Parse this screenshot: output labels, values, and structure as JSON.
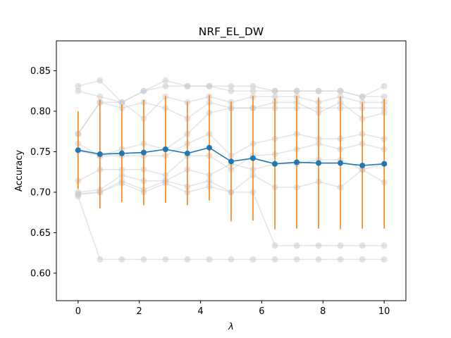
{
  "chart_data": {
    "type": "line",
    "title": "NRF_EL_DW",
    "xlabel": "λ",
    "ylabel": "Accuracy",
    "xlim": [
      -0.71,
      10.71
    ],
    "ylim": [
      0.566,
      0.887
    ],
    "xticks": [
      0,
      2,
      4,
      6,
      8,
      10
    ],
    "yticks": [
      0.6,
      0.65,
      0.7,
      0.75,
      0.8,
      0.85
    ],
    "x": [
      0,
      0.714,
      1.429,
      2.143,
      2.857,
      3.571,
      4.286,
      5.0,
      5.714,
      6.429,
      7.143,
      7.857,
      8.571,
      9.286,
      10.0
    ],
    "mean_series": {
      "color": "#1f77b4",
      "values": [
        0.752,
        0.747,
        0.748,
        0.749,
        0.753,
        0.748,
        0.755,
        0.738,
        0.742,
        0.735,
        0.737,
        0.736,
        0.736,
        0.733,
        0.735
      ]
    },
    "error_bars": {
      "color": "#ff7f0e",
      "std": [
        0.048,
        0.067,
        0.06,
        0.065,
        0.066,
        0.064,
        0.065,
        0.074,
        0.077,
        0.081,
        0.082,
        0.081,
        0.082,
        0.078,
        0.08
      ]
    },
    "background_series": {
      "color": "#cccccc",
      "series": [
        {
          "values": [
            0.831,
            0.838,
            0.811,
            0.825,
            0.838,
            0.831,
            0.831,
            0.831,
            0.831,
            0.825,
            0.825,
            0.825,
            0.825,
            0.818,
            0.831
          ]
        },
        {
          "values": [
            0.825,
            0.818,
            0.811,
            0.825,
            0.831,
            0.831,
            0.831,
            0.825,
            0.825,
            0.825,
            0.825,
            0.825,
            0.825,
            0.818,
            0.818
          ]
        },
        {
          "values": [
            0.772,
            0.811,
            0.811,
            0.791,
            0.818,
            0.811,
            0.818,
            0.811,
            0.818,
            0.818,
            0.818,
            0.811,
            0.818,
            0.811,
            0.811
          ]
        },
        {
          "values": [
            0.772,
            0.811,
            0.804,
            0.811,
            0.804,
            0.791,
            0.811,
            0.804,
            0.804,
            0.804,
            0.804,
            0.804,
            0.804,
            0.804,
            0.804
          ]
        },
        {
          "values": [
            0.76,
            0.745,
            0.753,
            0.76,
            0.753,
            0.772,
            0.798,
            0.804,
            0.804,
            0.811,
            0.811,
            0.798,
            0.811,
            0.791,
            0.798
          ]
        },
        {
          "values": [
            0.751,
            0.745,
            0.745,
            0.745,
            0.745,
            0.76,
            0.772,
            0.745,
            0.76,
            0.766,
            0.772,
            0.766,
            0.766,
            0.772,
            0.766
          ]
        },
        {
          "values": [
            0.714,
            0.728,
            0.728,
            0.728,
            0.721,
            0.745,
            0.745,
            0.728,
            0.745,
            0.747,
            0.753,
            0.76,
            0.753,
            0.76,
            0.753
          ]
        },
        {
          "values": [
            0.7,
            0.703,
            0.721,
            0.714,
            0.714,
            0.728,
            0.721,
            0.735,
            0.728,
            0.735,
            0.735,
            0.74,
            0.74,
            0.728,
            0.735
          ]
        },
        {
          "values": [
            0.697,
            0.7,
            0.714,
            0.703,
            0.714,
            0.707,
            0.714,
            0.7,
            0.721,
            0.706,
            0.706,
            0.713,
            0.706,
            0.728,
            0.712
          ]
        },
        {
          "values": [
            0.698,
            0.7,
            0.711,
            0.7,
            0.711,
            0.7,
            0.707,
            0.7,
            0.7,
            0.634,
            0.634,
            0.634,
            0.634,
            0.634,
            0.634
          ]
        },
        {
          "values": [
            0.695,
            0.617,
            0.617,
            0.617,
            0.617,
            0.617,
            0.617,
            0.617,
            0.617,
            0.617,
            0.617,
            0.617,
            0.617,
            0.617,
            0.617
          ]
        }
      ]
    }
  }
}
